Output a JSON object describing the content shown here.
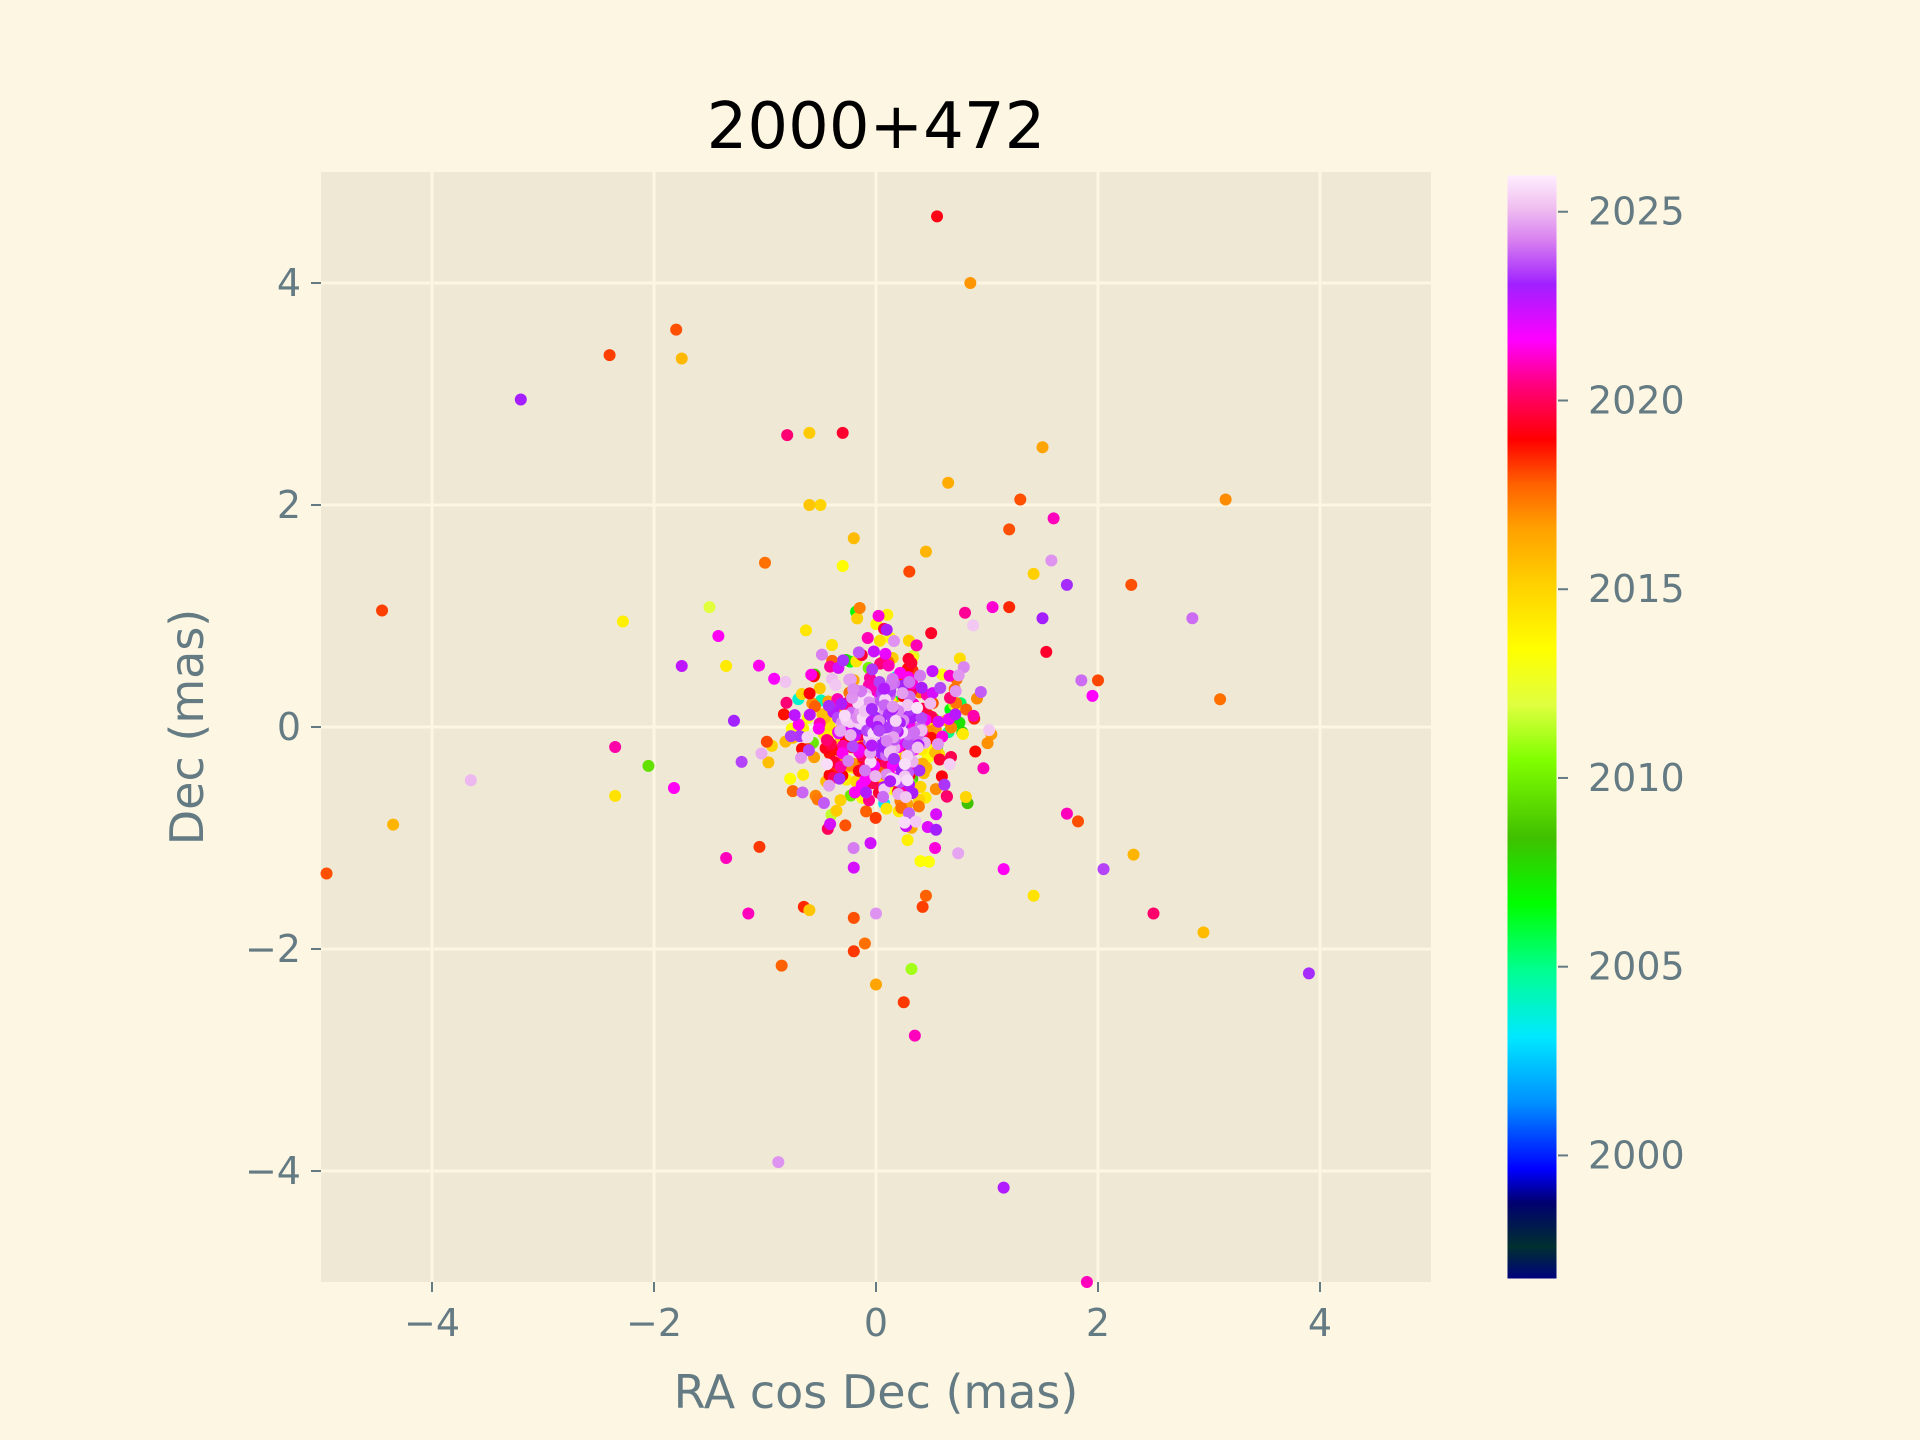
{
  "chart_data": {
    "type": "scatter",
    "title": "2000+472",
    "xlabel": "RA cos Dec (mas)",
    "ylabel": "Dec (mas)",
    "xlim": [
      -5,
      5
    ],
    "ylim": [
      -5,
      5
    ],
    "grid": true,
    "x_ticks": [
      -4,
      -2,
      0,
      2,
      4
    ],
    "y_ticks": [
      -4,
      -2,
      0,
      2,
      4
    ],
    "x_tick_labels": [
      "−4",
      "−2",
      "0",
      "2",
      "4"
    ],
    "y_tick_labels": [
      "−4",
      "−2",
      "0",
      "2",
      "4"
    ],
    "colorbar": {
      "label": "",
      "range": [
        1996.7,
        2026.0
      ],
      "ticks": [
        2000,
        2005,
        2010,
        2015,
        2020,
        2025
      ],
      "tick_labels": [
        "2000",
        "2005",
        "2010",
        "2015",
        "2020",
        "2025"
      ],
      "colormap": "gist_ncar-like",
      "stops": [
        [
          0.0,
          "#000080"
        ],
        [
          0.03,
          "#003030"
        ],
        [
          0.07,
          "#000070"
        ],
        [
          0.1,
          "#0000ff"
        ],
        [
          0.16,
          "#0090ff"
        ],
        [
          0.22,
          "#00e8ff"
        ],
        [
          0.28,
          "#00ff90"
        ],
        [
          0.34,
          "#00ff00"
        ],
        [
          0.4,
          "#40c000"
        ],
        [
          0.47,
          "#80ff00"
        ],
        [
          0.52,
          "#e0ff40"
        ],
        [
          0.57,
          "#ffff00"
        ],
        [
          0.63,
          "#ffd000"
        ],
        [
          0.68,
          "#ffa000"
        ],
        [
          0.72,
          "#ff6000"
        ],
        [
          0.76,
          "#ff0000"
        ],
        [
          0.81,
          "#ff0080"
        ],
        [
          0.85,
          "#ff00ff"
        ],
        [
          0.9,
          "#a020ff"
        ],
        [
          0.94,
          "#d880f0"
        ],
        [
          0.97,
          "#f0c0f0"
        ],
        [
          1.0,
          "#fff0ff"
        ]
      ]
    },
    "outliers": [
      {
        "x": 0.55,
        "y": 4.6,
        "year": 2019.2
      },
      {
        "x": 0.85,
        "y": 4.0,
        "year": 2016.8
      },
      {
        "x": -1.8,
        "y": 3.58,
        "year": 2018.0
      },
      {
        "x": -2.4,
        "y": 3.35,
        "year": 2018.2
      },
      {
        "x": -1.75,
        "y": 3.32,
        "year": 2015.9
      },
      {
        "x": -3.2,
        "y": 2.95,
        "year": 2023.0
      },
      {
        "x": -0.8,
        "y": 2.63,
        "year": 2020.3
      },
      {
        "x": -0.6,
        "y": 2.65,
        "year": 2015.3
      },
      {
        "x": -0.3,
        "y": 2.65,
        "year": 2019.5
      },
      {
        "x": 1.5,
        "y": 2.52,
        "year": 2016.5
      },
      {
        "x": 0.65,
        "y": 2.2,
        "year": 2016.3
      },
      {
        "x": 1.3,
        "y": 2.05,
        "year": 2018.0
      },
      {
        "x": 3.15,
        "y": 2.05,
        "year": 2017.0
      },
      {
        "x": -0.6,
        "y": 2.0,
        "year": 2015.5
      },
      {
        "x": -0.5,
        "y": 2.0,
        "year": 2015.0
      },
      {
        "x": 1.6,
        "y": 1.88,
        "year": 2021.0
      },
      {
        "x": 1.2,
        "y": 1.78,
        "year": 2018.0
      },
      {
        "x": -0.2,
        "y": 1.7,
        "year": 2015.8
      },
      {
        "x": 0.45,
        "y": 1.58,
        "year": 2016.0
      },
      {
        "x": 1.58,
        "y": 1.5,
        "year": 2024.5
      },
      {
        "x": -1.0,
        "y": 1.48,
        "year": 2017.5
      },
      {
        "x": -0.3,
        "y": 1.45,
        "year": 2013.5
      },
      {
        "x": 1.42,
        "y": 1.38,
        "year": 2015.2
      },
      {
        "x": 0.3,
        "y": 1.4,
        "year": 2018.1
      },
      {
        "x": 2.3,
        "y": 1.28,
        "year": 2018.0
      },
      {
        "x": 1.72,
        "y": 1.28,
        "year": 2023.2
      },
      {
        "x": -1.5,
        "y": 1.08,
        "year": 2012.0
      },
      {
        "x": -4.45,
        "y": 1.05,
        "year": 2018.2
      },
      {
        "x": -2.28,
        "y": 0.95,
        "year": 2014.0
      },
      {
        "x": 2.85,
        "y": 0.98,
        "year": 2024.0
      },
      {
        "x": 1.2,
        "y": 1.08,
        "year": 2018.5
      },
      {
        "x": 1.05,
        "y": 1.08,
        "year": 2021.2
      },
      {
        "x": 1.5,
        "y": 0.98,
        "year": 2023.0
      },
      {
        "x": -1.35,
        "y": 0.55,
        "year": 2014.2
      },
      {
        "x": -1.75,
        "y": 0.55,
        "year": 2022.6
      },
      {
        "x": -1.42,
        "y": 0.82,
        "year": 2021.5
      },
      {
        "x": 2.0,
        "y": 0.42,
        "year": 2018.1
      },
      {
        "x": 1.95,
        "y": 0.28,
        "year": 2021.6
      },
      {
        "x": 1.85,
        "y": 0.42,
        "year": 2024.0
      },
      {
        "x": 3.1,
        "y": 0.25,
        "year": 2017.5
      },
      {
        "x": -2.35,
        "y": -0.18,
        "year": 2020.8
      },
      {
        "x": -2.05,
        "y": -0.35,
        "year": 2009.5
      },
      {
        "x": -3.65,
        "y": -0.48,
        "year": 2025.0
      },
      {
        "x": -1.82,
        "y": -0.55,
        "year": 2021.5
      },
      {
        "x": -4.35,
        "y": -0.88,
        "year": 2016.0
      },
      {
        "x": -2.35,
        "y": -0.62,
        "year": 2014.5
      },
      {
        "x": -4.95,
        "y": -1.32,
        "year": 2018.0
      },
      {
        "x": -1.35,
        "y": -1.18,
        "year": 2021.0
      },
      {
        "x": -1.05,
        "y": -1.08,
        "year": 2018.3
      },
      {
        "x": 1.72,
        "y": -0.78,
        "year": 2021.0
      },
      {
        "x": 1.82,
        "y": -0.85,
        "year": 2018.0
      },
      {
        "x": 2.32,
        "y": -1.15,
        "year": 2016.0
      },
      {
        "x": 2.05,
        "y": -1.28,
        "year": 2023.5
      },
      {
        "x": 1.15,
        "y": -1.28,
        "year": 2021.5
      },
      {
        "x": 1.42,
        "y": -1.52,
        "year": 2014.5
      },
      {
        "x": 2.5,
        "y": -1.68,
        "year": 2020.2
      },
      {
        "x": 2.95,
        "y": -1.85,
        "year": 2015.8
      },
      {
        "x": 3.9,
        "y": -2.22,
        "year": 2023.2
      },
      {
        "x": -1.15,
        "y": -1.68,
        "year": 2021.0
      },
      {
        "x": -0.65,
        "y": -1.62,
        "year": 2018.5
      },
      {
        "x": -0.6,
        "y": -1.65,
        "year": 2015.5
      },
      {
        "x": -0.2,
        "y": -1.72,
        "year": 2018.0
      },
      {
        "x": 0.0,
        "y": -1.68,
        "year": 2024.5
      },
      {
        "x": 0.42,
        "y": -1.62,
        "year": 2018.2
      },
      {
        "x": 0.45,
        "y": -1.52,
        "year": 2017.8
      },
      {
        "x": -0.1,
        "y": -1.95,
        "year": 2017.5
      },
      {
        "x": -0.2,
        "y": -2.02,
        "year": 2018.3
      },
      {
        "x": -0.85,
        "y": -2.15,
        "year": 2017.8
      },
      {
        "x": 0.0,
        "y": -2.32,
        "year": 2016.5
      },
      {
        "x": 0.32,
        "y": -2.18,
        "year": 2011.0
      },
      {
        "x": 0.25,
        "y": -2.48,
        "year": 2018.3
      },
      {
        "x": 0.35,
        "y": -2.78,
        "year": 2021.0
      },
      {
        "x": -0.88,
        "y": -3.92,
        "year": 2024.5
      },
      {
        "x": 1.15,
        "y": -4.15,
        "year": 2022.8
      },
      {
        "x": 1.9,
        "y": -5.0,
        "year": 2021.0
      }
    ],
    "cluster": {
      "count": 520,
      "center": [
        0.05,
        -0.05
      ],
      "sigma": [
        0.42,
        0.42
      ],
      "year_range": [
        2003.0,
        2025.8
      ],
      "dense_year_band": [
        2013.0,
        2025.8
      ],
      "core_year_band": [
        2022.5,
        2025.8
      ],
      "core_sigma": 0.17
    }
  }
}
